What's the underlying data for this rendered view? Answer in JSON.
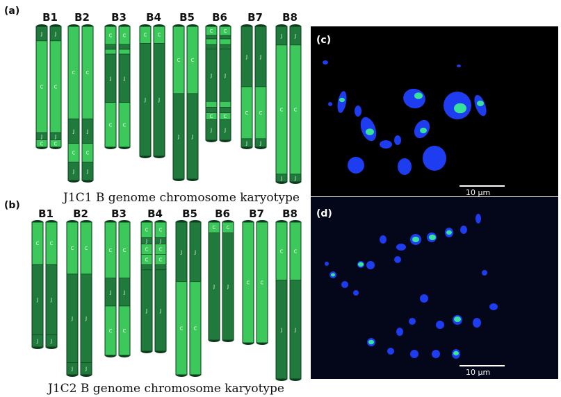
{
  "panels": {
    "a": {
      "letter": "(a)",
      "caption": "J1C1 B genome chromosome karyotype",
      "chromosomes": [
        {
          "name": "B1",
          "segments": [
            {
              "frac": 0.12,
              "g": "J",
              "dark": true
            },
            {
              "frac": 0.76,
              "g": "C",
              "dark": false
            },
            {
              "frac": 0.06,
              "g": "J",
              "dark": true
            },
            {
              "frac": 0.06,
              "g": "C",
              "dark": false
            }
          ]
        },
        {
          "name": "B2",
          "segments": [
            {
              "frac": 0.6,
              "g": "C",
              "dark": false
            },
            {
              "frac": 0.16,
              "g": "J",
              "dark": true
            },
            {
              "frac": 0.12,
              "g": "C",
              "dark": false
            },
            {
              "frac": 0.12,
              "g": "J",
              "dark": true
            }
          ]
        },
        {
          "name": "B3",
          "segments": [
            {
              "frac": 0.15,
              "g": "C",
              "dark": false
            },
            {
              "frac": 0.04,
              "g": "J",
              "dark": true
            },
            {
              "frac": 0.04,
              "g": "C",
              "dark": false
            },
            {
              "frac": 0.4,
              "g": "J",
              "dark": true
            },
            {
              "frac": 0.37,
              "g": "C",
              "dark": false
            }
          ]
        },
        {
          "name": "B4",
          "segments": [
            {
              "frac": 0.13,
              "g": "C",
              "dark": false
            },
            {
              "frac": 0.87,
              "g": "J",
              "dark": true
            }
          ]
        },
        {
          "name": "B5",
          "segments": [
            {
              "frac": 0.44,
              "g": "C",
              "dark": false
            },
            {
              "frac": 0.56,
              "g": "J",
              "dark": true
            }
          ]
        },
        {
          "name": "B6",
          "segments": [
            {
              "frac": 0.08,
              "g": "C",
              "dark": false
            },
            {
              "frac": 0.03,
              "g": "J",
              "dark": true
            },
            {
              "frac": 0.05,
              "g": "C",
              "dark": false
            },
            {
              "frac": 0.04,
              "g": "J",
              "dark": true
            },
            {
              "frac": 0.46,
              "g": "J",
              "dark": true
            },
            {
              "frac": 0.05,
              "g": "C",
              "dark": false
            },
            {
              "frac": 0.05,
              "g": "J",
              "dark": true
            },
            {
              "frac": 0.06,
              "g": "C",
              "dark": false
            },
            {
              "frac": 0.18,
              "g": "J",
              "dark": true
            }
          ]
        },
        {
          "name": "B7",
          "segments": [
            {
              "frac": 0.5,
              "g": "J",
              "dark": true
            },
            {
              "frac": 0.43,
              "g": "C",
              "dark": false
            },
            {
              "frac": 0.07,
              "g": "J",
              "dark": true
            }
          ]
        },
        {
          "name": "B8",
          "segments": [
            {
              "frac": 0.12,
              "g": "J",
              "dark": true
            },
            {
              "frac": 0.83,
              "g": "C",
              "dark": false
            },
            {
              "frac": 0.05,
              "g": "J",
              "dark": true
            }
          ]
        }
      ]
    },
    "b": {
      "letter": "(b)",
      "caption": "J1C2 B genome chromosome karyotype",
      "chromosomes": [
        {
          "name": "B1",
          "segments": [
            {
              "frac": 0.34,
              "g": "C",
              "dark": false
            },
            {
              "frac": 0.56,
              "g": "J",
              "dark": true
            },
            {
              "frac": 0.1,
              "g": "J",
              "dark": true
            }
          ]
        },
        {
          "name": "B2",
          "segments": [
            {
              "frac": 0.34,
              "g": "C",
              "dark": false
            },
            {
              "frac": 0.58,
              "g": "J",
              "dark": true
            },
            {
              "frac": 0.08,
              "g": "J",
              "dark": true
            }
          ]
        },
        {
          "name": "B3",
          "segments": [
            {
              "frac": 0.42,
              "g": "C",
              "dark": false
            },
            {
              "frac": 0.21,
              "g": "J",
              "dark": true
            },
            {
              "frac": 0.37,
              "g": "C",
              "dark": false
            }
          ]
        },
        {
          "name": "B4",
          "segments": [
            {
              "frac": 0.12,
              "g": "C",
              "dark": false
            },
            {
              "frac": 0.05,
              "g": "J",
              "dark": true
            },
            {
              "frac": 0.08,
              "g": "C",
              "dark": false
            },
            {
              "frac": 0.08,
              "g": "C",
              "dark": false
            },
            {
              "frac": 0.04,
              "g": "J",
              "dark": true
            },
            {
              "frac": 0.63,
              "g": "J",
              "dark": true
            }
          ]
        },
        {
          "name": "B5",
          "segments": [
            {
              "frac": 0.39,
              "g": "J",
              "dark": true
            },
            {
              "frac": 0.61,
              "g": "C",
              "dark": false
            }
          ]
        },
        {
          "name": "B6",
          "segments": [
            {
              "frac": 0.09,
              "g": "C",
              "dark": false
            },
            {
              "frac": 0.91,
              "g": "J",
              "dark": true
            }
          ]
        },
        {
          "name": "B7",
          "segments": [
            {
              "frac": 1.0,
              "g": "C",
              "dark": false
            }
          ]
        },
        {
          "name": "B8",
          "segments": [
            {
              "frac": 0.37,
              "g": "C",
              "dark": false
            },
            {
              "frac": 0.63,
              "g": "J",
              "dark": true
            }
          ]
        }
      ]
    },
    "c": {
      "letter": "(c)",
      "scale_bar": "10 μm"
    },
    "d": {
      "letter": "(d)",
      "scale_bar": "10 μm"
    }
  },
  "colors": {
    "light_green": "#3cc85a",
    "dark_green": "#1f7a3c",
    "outline": "#0d3a1c",
    "micro_bg": "#000000",
    "nucleus_blue": "#1e3cf0",
    "signal_green": "#3cff8c"
  }
}
